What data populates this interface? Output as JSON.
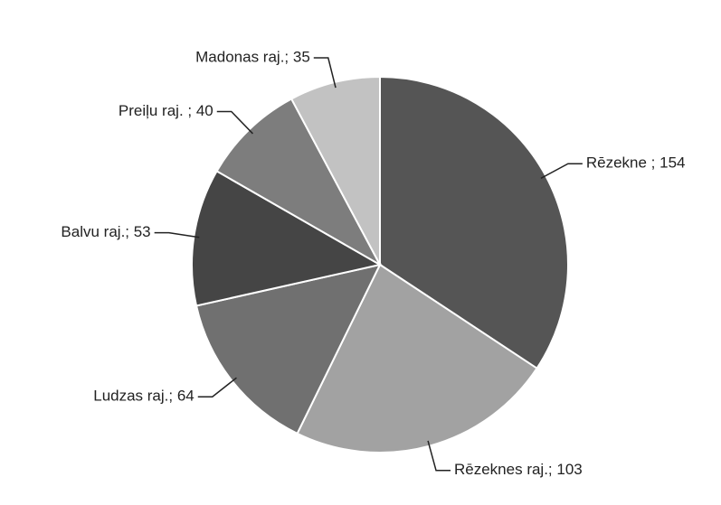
{
  "chart_data": {
    "type": "pie",
    "values": [
      154,
      103,
      64,
      53,
      40,
      35
    ],
    "value_labels": [
      "Rēzekne ; 154",
      "Rēzeknes raj.; 103",
      "Ludzas raj.; 64",
      "Balvu raj.; 53",
      "Preiļu raj. ; 40",
      "Madonas raj.; 35"
    ],
    "colors": [
      "#555555",
      "#a2a2a2",
      "#707070",
      "#454545",
      "#7d7d7d",
      "#c2c2c2"
    ]
  }
}
